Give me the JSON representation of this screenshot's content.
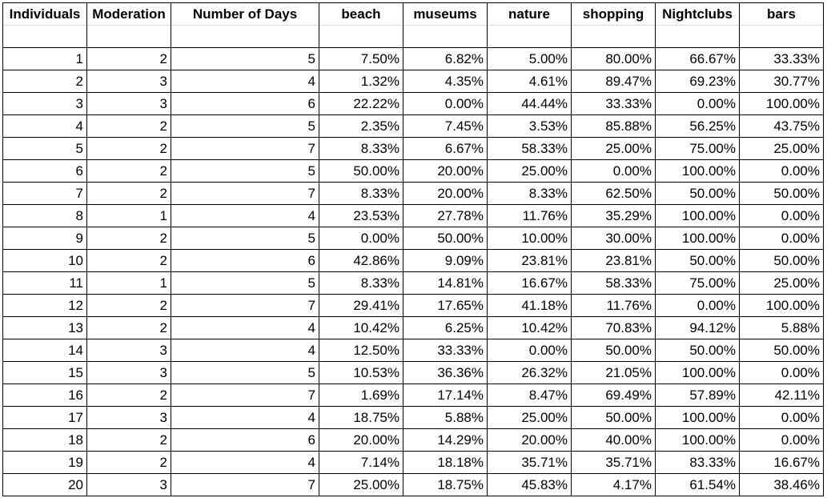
{
  "columns": [
    "Individuals",
    "Moderation",
    "Number of Days",
    "beach",
    "museums",
    "nature",
    "shopping",
    "Nightclubs",
    "bars"
  ],
  "rows": [
    [
      "1",
      "2",
      "5",
      "7.50%",
      "6.82%",
      "5.00%",
      "80.00%",
      "66.67%",
      "33.33%"
    ],
    [
      "2",
      "3",
      "4",
      "1.32%",
      "4.35%",
      "4.61%",
      "89.47%",
      "69.23%",
      "30.77%"
    ],
    [
      "3",
      "3",
      "6",
      "22.22%",
      "0.00%",
      "44.44%",
      "33.33%",
      "0.00%",
      "100.00%"
    ],
    [
      "4",
      "2",
      "5",
      "2.35%",
      "7.45%",
      "3.53%",
      "85.88%",
      "56.25%",
      "43.75%"
    ],
    [
      "5",
      "2",
      "7",
      "8.33%",
      "6.67%",
      "58.33%",
      "25.00%",
      "75.00%",
      "25.00%"
    ],
    [
      "6",
      "2",
      "5",
      "50.00%",
      "20.00%",
      "25.00%",
      "0.00%",
      "100.00%",
      "0.00%"
    ],
    [
      "7",
      "2",
      "7",
      "8.33%",
      "20.00%",
      "8.33%",
      "62.50%",
      "50.00%",
      "50.00%"
    ],
    [
      "8",
      "1",
      "4",
      "23.53%",
      "27.78%",
      "11.76%",
      "35.29%",
      "100.00%",
      "0.00%"
    ],
    [
      "9",
      "2",
      "5",
      "0.00%",
      "50.00%",
      "10.00%",
      "30.00%",
      "100.00%",
      "0.00%"
    ],
    [
      "10",
      "2",
      "6",
      "42.86%",
      "9.09%",
      "23.81%",
      "23.81%",
      "50.00%",
      "50.00%"
    ],
    [
      "11",
      "1",
      "5",
      "8.33%",
      "14.81%",
      "16.67%",
      "58.33%",
      "75.00%",
      "25.00%"
    ],
    [
      "12",
      "2",
      "7",
      "29.41%",
      "17.65%",
      "41.18%",
      "11.76%",
      "0.00%",
      "100.00%"
    ],
    [
      "13",
      "2",
      "4",
      "10.42%",
      "6.25%",
      "10.42%",
      "70.83%",
      "94.12%",
      "5.88%"
    ],
    [
      "14",
      "3",
      "4",
      "12.50%",
      "33.33%",
      "0.00%",
      "50.00%",
      "50.00%",
      "50.00%"
    ],
    [
      "15",
      "3",
      "5",
      "10.53%",
      "36.36%",
      "26.32%",
      "21.05%",
      "100.00%",
      "0.00%"
    ],
    [
      "16",
      "2",
      "7",
      "1.69%",
      "17.14%",
      "8.47%",
      "69.49%",
      "57.89%",
      "42.11%"
    ],
    [
      "17",
      "3",
      "4",
      "18.75%",
      "5.88%",
      "25.00%",
      "50.00%",
      "100.00%",
      "0.00%"
    ],
    [
      "18",
      "2",
      "6",
      "20.00%",
      "14.29%",
      "20.00%",
      "40.00%",
      "100.00%",
      "0.00%"
    ],
    [
      "19",
      "2",
      "4",
      "7.14%",
      "18.18%",
      "35.71%",
      "35.71%",
      "83.33%",
      "16.67%"
    ],
    [
      "20",
      "3",
      "7",
      "25.00%",
      "18.75%",
      "45.83%",
      "4.17%",
      "61.54%",
      "38.46%"
    ]
  ]
}
